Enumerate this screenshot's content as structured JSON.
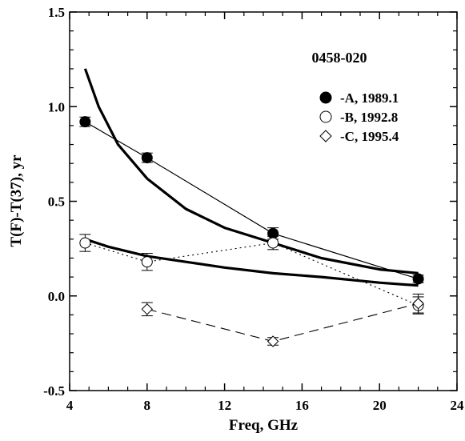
{
  "chart_data": {
    "type": "scatter",
    "title": "0458-020",
    "xlabel": "Freq, GHz",
    "ylabel": "T(F)-T(37), yr",
    "xlim": [
      4,
      24
    ],
    "ylim": [
      -0.5,
      1.5
    ],
    "x_ticks": [
      4,
      8,
      12,
      16,
      20,
      24
    ],
    "y_ticks": [
      -0.5,
      0.0,
      0.5,
      1.0,
      1.5
    ],
    "x_tick_labels": [
      "4",
      "8",
      "12",
      "16",
      "20",
      "24"
    ],
    "y_tick_labels": [
      "-0.5",
      "0.0",
      "0.5",
      "1.0",
      "1.5"
    ],
    "grid": false,
    "legend_position": "top-right",
    "series": [
      {
        "name": "-A, 1989.1",
        "marker": "filled-circle",
        "line_style": "solid-thin",
        "x": [
          4.8,
          8.0,
          14.5,
          22.0
        ],
        "y": [
          0.92,
          0.73,
          0.33,
          0.09
        ],
        "err": [
          0.025,
          0.025,
          0.03,
          0.02
        ]
      },
      {
        "name": "-B, 1992.8",
        "marker": "open-circle",
        "line_style": "dotted",
        "x": [
          4.8,
          8.0,
          14.5,
          22.0
        ],
        "y": [
          0.28,
          0.18,
          0.28,
          -0.05
        ],
        "err": [
          0.045,
          0.045,
          0.035,
          0.045
        ]
      },
      {
        "name": "-C, 1995.4",
        "marker": "open-diamond",
        "line_style": "dashed",
        "x": [
          8.0,
          14.5,
          22.0
        ],
        "y": [
          -0.07,
          -0.24,
          -0.04
        ],
        "err": [
          0.035,
          0.02,
          0.05
        ]
      }
    ],
    "fit_curves": [
      {
        "style": "thick-solid",
        "x": [
          4.8,
          5.5,
          6.5,
          8,
          10,
          12,
          14.5,
          17,
          20,
          22
        ],
        "y": [
          1.2,
          1.0,
          0.8,
          0.62,
          0.46,
          0.36,
          0.28,
          0.2,
          0.14,
          0.12
        ]
      },
      {
        "style": "thick-solid",
        "x": [
          4.8,
          6,
          8,
          10,
          12,
          14.5,
          17,
          20,
          22
        ],
        "y": [
          0.3,
          0.26,
          0.21,
          0.18,
          0.15,
          0.12,
          0.1,
          0.07,
          0.055
        ]
      }
    ]
  }
}
